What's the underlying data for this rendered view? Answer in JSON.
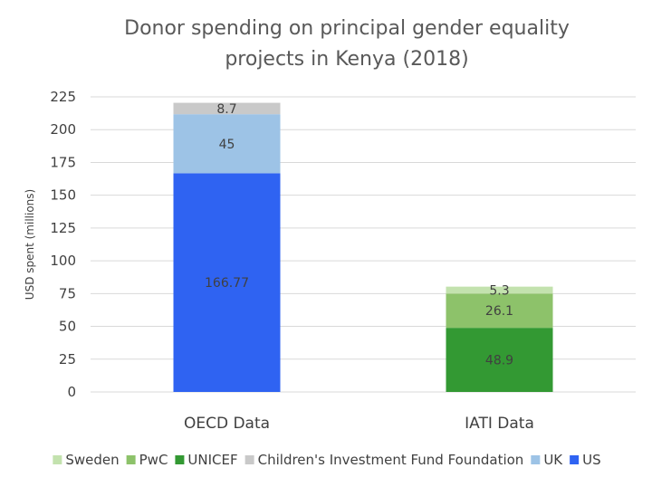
{
  "chart_data": {
    "type": "bar",
    "stacked": true,
    "title": [
      "Donor spending on principal gender equality",
      "projects in Kenya (2018)"
    ],
    "xlabel": "",
    "ylabel": "USD spent (millions)",
    "ylim": [
      0,
      225
    ],
    "yticks": [
      0,
      25,
      50,
      75,
      100,
      125,
      150,
      175,
      200,
      225
    ],
    "grid": true,
    "legend_position": "bottom",
    "categories": [
      "OECD Data",
      "IATI Data"
    ],
    "series": [
      {
        "name": "US",
        "color": "#2f63f2",
        "values": [
          166.77,
          null
        ]
      },
      {
        "name": "UK",
        "color": "#9dc3e6",
        "values": [
          45,
          null
        ]
      },
      {
        "name": "Children's Investment Fund Foundation",
        "color": "#c9c9c9",
        "values": [
          8.7,
          null
        ]
      },
      {
        "name": "UNICEF",
        "color": "#339933",
        "values": [
          null,
          48.9
        ]
      },
      {
        "name": "PwC",
        "color": "#8dc26a",
        "values": [
          null,
          26.1
        ]
      },
      {
        "name": "Sweden",
        "color": "#c3e2ae",
        "values": [
          null,
          5.3
        ]
      }
    ],
    "legend_order": [
      "Sweden",
      "PwC",
      "UNICEF",
      "Children's Investment Fund Foundation",
      "UK",
      "US"
    ]
  }
}
